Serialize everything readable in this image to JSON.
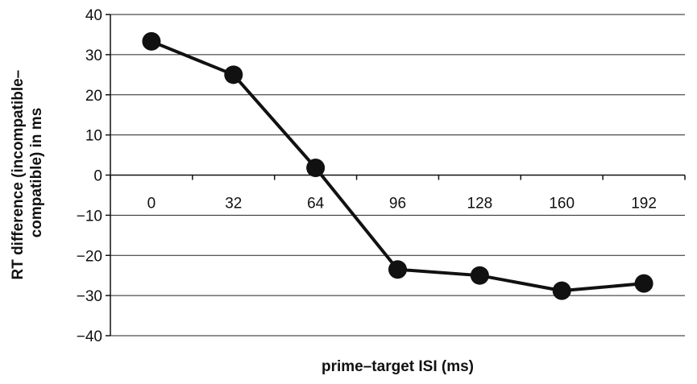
{
  "chart_data": {
    "type": "line",
    "title": "",
    "xlabel": "prime–target ISI (ms)",
    "ylabel_lines": [
      "RT difference (incompatible–",
      "compatible) in ms"
    ],
    "categories": [
      "0",
      "32",
      "64",
      "96",
      "128",
      "160",
      "192"
    ],
    "series": [
      {
        "values": [
          33.3,
          25.0,
          1.8,
          -23.5,
          -25.0,
          -28.8,
          -27.0
        ]
      }
    ],
    "ylim": [
      -40,
      40
    ],
    "yticks": [
      -40,
      -30,
      -20,
      -10,
      0,
      10,
      20,
      30,
      40
    ],
    "ytick_labels": [
      "−40",
      "−30",
      "−20",
      "−10",
      "0",
      "10",
      "20",
      "30",
      "40"
    ],
    "grid": true,
    "x_axis_at": 0,
    "legend": "none",
    "colors": {
      "line": "#111111",
      "marker": "#111111",
      "grid": "#222222"
    }
  }
}
